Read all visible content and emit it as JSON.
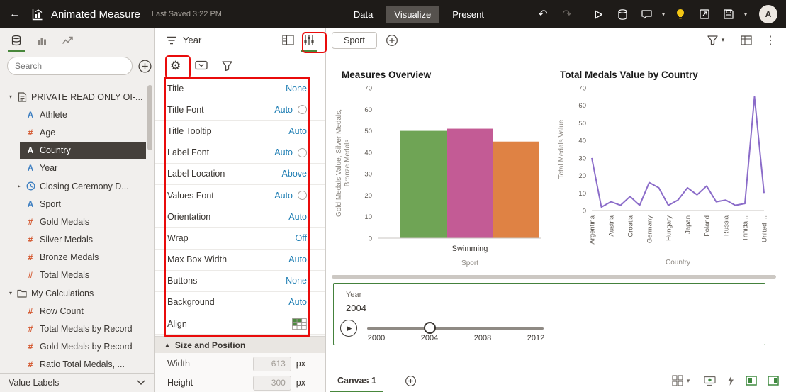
{
  "colors": {
    "annotation_red": "#e90b0b",
    "accent_green": "#48873b",
    "property_value_blue": "#1d7db3",
    "topbar_bg": "#1e1b18",
    "selected_item_bg": "#45403b",
    "bulb_yellow": "#f3c614"
  },
  "topbar": {
    "title": "Animated Measure",
    "last_saved": "Last Saved 3:22 PM",
    "nav": [
      {
        "label": "Data",
        "active": false
      },
      {
        "label": "Visualize",
        "active": true
      },
      {
        "label": "Present",
        "active": false
      }
    ],
    "avatar_initial": "A"
  },
  "data_panel": {
    "search_placeholder": "Search",
    "items": [
      {
        "label": "PRIVATE READ ONLY OI-...",
        "icon": "dataset",
        "level": 0,
        "expanded": true
      },
      {
        "label": "Athlete",
        "icon": "text",
        "level": 1
      },
      {
        "label": "Age",
        "icon": "number",
        "level": 1
      },
      {
        "label": "Country",
        "icon": "text",
        "level": 1,
        "selected": true
      },
      {
        "label": "Year",
        "icon": "text",
        "level": 1
      },
      {
        "label": "Closing Ceremony D...",
        "icon": "time",
        "level": 1,
        "collapsed": true
      },
      {
        "label": "Sport",
        "icon": "text",
        "level": 1
      },
      {
        "label": "Gold Medals",
        "icon": "number",
        "level": 1
      },
      {
        "label": "Silver Medals",
        "icon": "number",
        "level": 1
      },
      {
        "label": "Bronze Medals",
        "icon": "number",
        "level": 1
      },
      {
        "label": "Total Medals",
        "icon": "number",
        "level": 1
      },
      {
        "label": "My Calculations",
        "icon": "folder",
        "level": 0,
        "expanded": true
      },
      {
        "label": "Row Count",
        "icon": "number",
        "level": 1
      },
      {
        "label": "Total Medals by Record",
        "icon": "number",
        "level": 1
      },
      {
        "label": "Gold Medals by Record",
        "icon": "number",
        "level": 1
      },
      {
        "label": "Ratio Total Medals, ...",
        "icon": "number",
        "level": 1
      }
    ],
    "footer_label": "Value Labels"
  },
  "properties_panel": {
    "title": "Year",
    "rows": [
      {
        "label": "Title",
        "value": "None"
      },
      {
        "label": "Title Font",
        "value": "Auto",
        "font_icon": true
      },
      {
        "label": "Title Tooltip",
        "value": "Auto"
      },
      {
        "label": "Label Font",
        "value": "Auto",
        "font_icon": true
      },
      {
        "label": "Label Location",
        "value": "Above"
      },
      {
        "label": "Values Font",
        "value": "Auto",
        "font_icon": true
      },
      {
        "label": "Orientation",
        "value": "Auto"
      },
      {
        "label": "Wrap",
        "value": "Off"
      },
      {
        "label": "Max Box Width",
        "value": "Auto"
      },
      {
        "label": "Buttons",
        "value": "None"
      },
      {
        "label": "Background",
        "value": "Auto"
      },
      {
        "label": "Align",
        "value": "",
        "align_grid": true
      }
    ],
    "size_section": {
      "title": "Size and Position",
      "width_label": "Width",
      "width_value": "613",
      "height_label": "Height",
      "height_value": "300",
      "unit": "px"
    }
  },
  "canvas": {
    "filter_pill": "Sport",
    "slider": {
      "label": "Year",
      "current_value": "2004",
      "ticks": [
        "2000",
        "2004",
        "2008",
        "2012"
      ]
    },
    "bottom_tab": "Canvas 1"
  },
  "chart_data": [
    {
      "type": "bar",
      "title": "Measures Overview",
      "categories": [
        "Swimming"
      ],
      "series": [
        {
          "name": "Gold Medals Value",
          "values": [
            50
          ],
          "color": "#6fa455"
        },
        {
          "name": "Silver Medals",
          "values": [
            51
          ],
          "color": "#c35b95"
        },
        {
          "name": "Bronze Medals",
          "values": [
            45
          ],
          "color": "#df8244"
        }
      ],
      "xlabel": "Sport",
      "ylabel": "Gold Medals Value, Silver Medals, Bronze Medals",
      "ylabel_lines": [
        "Gold Medals Value, Silver Medals,",
        "Bronze Medals"
      ],
      "ylim": [
        0,
        70
      ],
      "yticks": [
        0,
        10,
        20,
        30,
        40,
        50,
        60,
        70
      ],
      "grid": false,
      "legend": "none"
    },
    {
      "type": "line",
      "title": "Total Medals Value by Country",
      "x_labels": [
        "Argentina",
        "Austria",
        "Croatia",
        "Germany",
        "Hungary",
        "Japan",
        "Poland",
        "Russia",
        "Trinida...",
        "United ..."
      ],
      "label_every": 2,
      "values": [
        30,
        2,
        5,
        3,
        8,
        3,
        16,
        13,
        3,
        6,
        13,
        9,
        14,
        5,
        6,
        3,
        4,
        65,
        10
      ],
      "xlabel": "Country",
      "ylabel": "Total Medals Value",
      "ylim": [
        0,
        70
      ],
      "yticks": [
        0,
        10,
        20,
        30,
        40,
        50,
        60,
        70
      ],
      "color": "#8b6cc9",
      "grid": false,
      "legend": "none"
    }
  ]
}
